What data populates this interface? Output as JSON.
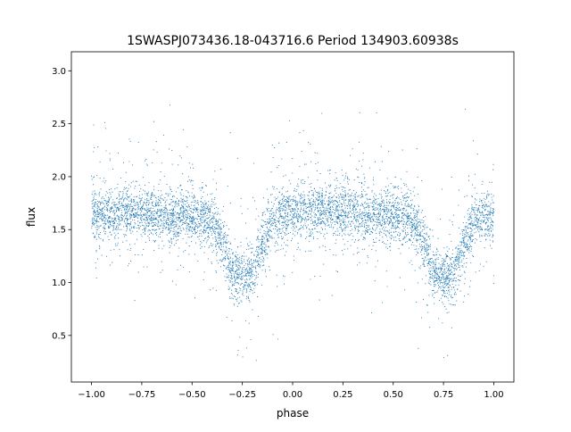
{
  "chart_data": {
    "type": "scatter",
    "title": "1SWASPJ073436.18-043716.6 Period 134903.60938s",
    "xlabel": "phase",
    "ylabel": "flux",
    "xlim": [
      -1.1,
      1.1
    ],
    "ylim": [
      0.06,
      3.18
    ],
    "xticks": [
      -1.0,
      -0.75,
      -0.5,
      -0.25,
      0.0,
      0.25,
      0.5,
      0.75,
      1.0
    ],
    "xtick_labels": [
      "−1.00",
      "−0.75",
      "−0.50",
      "−0.25",
      "0.00",
      "0.25",
      "0.50",
      "0.75",
      "1.00"
    ],
    "yticks": [
      0.5,
      1.0,
      1.5,
      2.0,
      2.5,
      3.0
    ],
    "ytick_labels": [
      "0.5",
      "1.0",
      "1.5",
      "2.0",
      "2.5",
      "3.0"
    ],
    "grid": false,
    "marker_color": "#1f77b4",
    "binned_profile": {
      "phase": [
        -1.0,
        -0.9,
        -0.8,
        -0.7,
        -0.6,
        -0.5,
        -0.45,
        -0.4,
        -0.35,
        -0.3,
        -0.25,
        -0.2,
        -0.15,
        -0.1,
        0.0,
        0.1,
        0.2,
        0.3,
        0.4,
        0.5,
        0.55,
        0.6,
        0.65,
        0.7,
        0.75,
        0.8,
        0.85,
        0.9,
        1.0
      ],
      "flux": [
        1.65,
        1.65,
        1.67,
        1.65,
        1.63,
        1.62,
        1.6,
        1.58,
        1.4,
        1.1,
        1.08,
        1.1,
        1.35,
        1.6,
        1.68,
        1.7,
        1.68,
        1.66,
        1.64,
        1.63,
        1.6,
        1.57,
        1.4,
        1.1,
        1.05,
        1.08,
        1.35,
        1.6,
        1.65
      ],
      "scatter_sigma": 0.12
    }
  }
}
